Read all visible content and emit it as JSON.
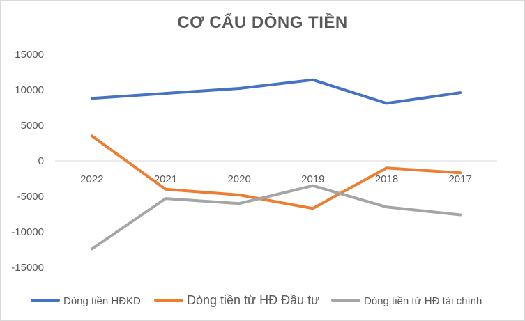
{
  "chart_data": {
    "type": "line",
    "title": "CƠ CẤU DÒNG TIỀN",
    "categories": [
      "2022",
      "2021",
      "2020",
      "2019",
      "2018",
      "2017"
    ],
    "y_ticks": [
      "15000",
      "10000",
      "5000",
      "0",
      "-5000",
      "-10000",
      "-15000"
    ],
    "ylim": [
      -15000,
      15000
    ],
    "grid": false,
    "legend_position": "bottom",
    "series": [
      {
        "name": "Dòng tiền HĐKD",
        "color": "#4472c4",
        "values": [
          8800,
          9500,
          10200,
          11400,
          8100,
          9600
        ]
      },
      {
        "name": "Dòng tiền từ HĐ Đầu tư",
        "color": "#ed7d31",
        "values": [
          3500,
          -4000,
          -4800,
          -6700,
          -1000,
          -1700
        ]
      },
      {
        "name": "Dòng tiền từ HĐ tài chính",
        "color": "#a5a5a5",
        "values": [
          -12400,
          -5300,
          -6000,
          -3500,
          -6500,
          -7600
        ]
      }
    ]
  }
}
